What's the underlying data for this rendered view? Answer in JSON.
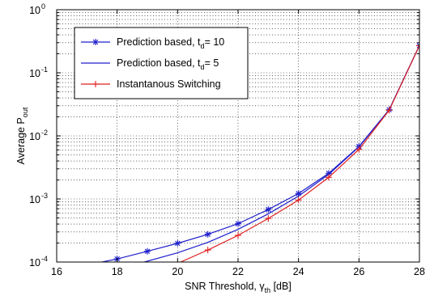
{
  "chart_data": {
    "type": "line",
    "title": "",
    "xlabel": "SNR Threshold, γ",
    "xlabel_sub": "th",
    "xlabel_suffix": " [dB]",
    "ylabel": "Average P",
    "ylabel_sub": "out",
    "xlim": [
      16,
      28
    ],
    "ylim": [
      0.0001,
      1
    ],
    "yscale": "log",
    "grid": true,
    "x_ticks": [
      16,
      18,
      20,
      22,
      24,
      26,
      28
    ],
    "x_tick_labels": [
      "16",
      "18",
      "20",
      "22",
      "24",
      "26",
      "28"
    ],
    "y_ticks": [
      0.0001,
      0.001,
      0.01,
      0.1,
      1
    ],
    "y_tick_labels": [
      {
        "base": "10",
        "exp": "-4"
      },
      {
        "base": "10",
        "exp": "-3"
      },
      {
        "base": "10",
        "exp": "-2"
      },
      {
        "base": "10",
        "exp": "-1"
      },
      {
        "base": "10",
        "exp": "0"
      }
    ],
    "legend_position": "top-left",
    "series": [
      {
        "name": "Prediction based, t",
        "name_sub": "d",
        "name_suffix": "= 10",
        "color": "#1f1fcc",
        "marker": "asterisk",
        "x": [
          17.5,
          18,
          19,
          20,
          21,
          22,
          23,
          24,
          25,
          26,
          27,
          28
        ],
        "y": [
          0.0001,
          0.000112,
          0.000148,
          0.000198,
          0.000275,
          0.000405,
          0.00068,
          0.00122,
          0.00255,
          0.0068,
          0.026,
          0.27
        ]
      },
      {
        "name": "Prediction based, t",
        "name_sub": "d",
        "name_suffix": "= 5",
        "color": "#1f1fcc",
        "marker": "none",
        "x": [
          18.9,
          20,
          21,
          22,
          23,
          24,
          25,
          26,
          27,
          28
        ],
        "y": [
          0.0001,
          0.00014,
          0.000205,
          0.00033,
          0.00058,
          0.00111,
          0.00245,
          0.0067,
          0.026,
          0.27
        ]
      },
      {
        "name": "Instantanous Switching",
        "name_sub": "",
        "name_suffix": "",
        "color": "#e01f1f",
        "marker": "plus",
        "x": [
          20.1,
          21,
          22,
          23,
          24,
          25,
          26,
          27,
          28
        ],
        "y": [
          0.0001,
          0.000155,
          0.000265,
          0.00049,
          0.00096,
          0.0022,
          0.0061,
          0.0255,
          0.27
        ]
      }
    ]
  }
}
